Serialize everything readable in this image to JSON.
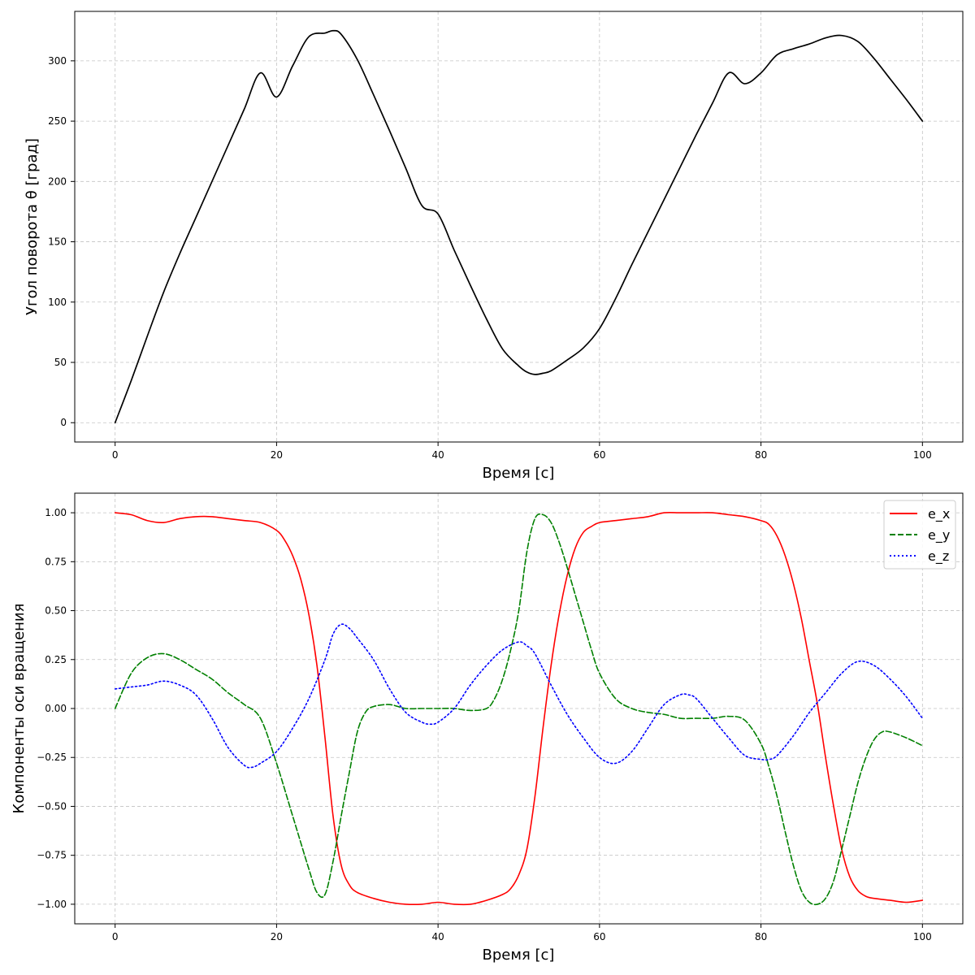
{
  "chart_data": [
    {
      "type": "line",
      "title": "",
      "xlabel": "Время [с]",
      "ylabel": "Угол поворота θ [град]",
      "xlim": [
        -5,
        105
      ],
      "ylim": [
        -16,
        341
      ],
      "xticks": [
        0,
        20,
        40,
        60,
        80,
        100
      ],
      "yticks": [
        0,
        50,
        100,
        150,
        200,
        250,
        300
      ],
      "xtick_labels": [
        "0",
        "20",
        "40",
        "60",
        "80",
        "100"
      ],
      "ytick_labels": [
        "0",
        "50",
        "100",
        "150",
        "200",
        "250",
        "300"
      ],
      "grid": true,
      "legend": null,
      "series": [
        {
          "color": "#000000",
          "dash": "solid",
          "x": [
            0,
            2,
            4,
            6,
            8,
            10,
            12,
            14,
            16,
            18,
            20,
            22,
            24,
            26,
            27,
            28,
            30,
            32,
            34,
            36,
            38,
            40,
            42,
            44,
            46,
            48,
            50,
            51,
            52,
            53,
            54,
            56,
            58,
            60,
            62,
            64,
            66,
            68,
            70,
            72,
            74,
            76,
            78,
            80,
            82,
            84,
            86,
            88,
            90,
            92,
            94,
            96,
            98,
            100
          ],
          "y": [
            0,
            35,
            72,
            108,
            140,
            170,
            200,
            230,
            260,
            290,
            270,
            296,
            320,
            323,
            325,
            322,
            301,
            272,
            242,
            211,
            180,
            173,
            143,
            114,
            86,
            61,
            47,
            42,
            40,
            41,
            43,
            52,
            62,
            78,
            103,
            131,
            158,
            185,
            212,
            239,
            265,
            290,
            281,
            290,
            305,
            310,
            314,
            319,
            321,
            316,
            302,
            285,
            268,
            250
          ]
        }
      ]
    },
    {
      "type": "line",
      "title": "",
      "xlabel": "Время [с]",
      "ylabel": "Компоненты оси вращения",
      "xlim": [
        -5,
        105
      ],
      "ylim": [
        -1.1,
        1.1
      ],
      "xticks": [
        0,
        20,
        40,
        60,
        80,
        100
      ],
      "yticks": [
        -1.0,
        -0.75,
        -0.5,
        -0.25,
        0.0,
        0.25,
        0.5,
        0.75,
        1.0
      ],
      "xtick_labels": [
        "0",
        "20",
        "40",
        "60",
        "80",
        "100"
      ],
      "ytick_labels": [
        "−1.00",
        "−0.75",
        "−0.50",
        "−0.25",
        "0.00",
        "0.25",
        "0.50",
        "0.75",
        "1.00"
      ],
      "grid": true,
      "legend": "top-right",
      "series": [
        {
          "name": "e_x",
          "color": "#ff0000",
          "dash": "solid",
          "x": [
            0,
            2,
            4,
            6,
            8,
            10,
            12,
            14,
            16,
            18,
            20,
            21,
            22,
            23,
            24,
            25,
            26,
            27,
            28,
            29,
            30,
            32,
            34,
            36,
            38,
            40,
            42,
            44,
            46,
            48,
            49,
            50,
            51,
            52,
            53,
            54,
            55,
            56,
            57,
            58,
            59,
            60,
            62,
            64,
            66,
            68,
            70,
            72,
            74,
            76,
            78,
            80,
            81,
            82,
            83,
            84,
            85,
            86,
            87,
            88,
            89,
            90,
            91,
            92,
            93,
            94,
            96,
            98,
            100
          ],
          "y": [
            1.0,
            0.99,
            0.96,
            0.95,
            0.97,
            0.98,
            0.98,
            0.97,
            0.96,
            0.95,
            0.91,
            0.86,
            0.78,
            0.66,
            0.48,
            0.22,
            -0.15,
            -0.55,
            -0.8,
            -0.9,
            -0.94,
            -0.97,
            -0.99,
            -1.0,
            -1.0,
            -0.99,
            -1.0,
            -1.0,
            -0.98,
            -0.95,
            -0.92,
            -0.85,
            -0.72,
            -0.45,
            -0.1,
            0.22,
            0.48,
            0.68,
            0.82,
            0.9,
            0.93,
            0.95,
            0.96,
            0.97,
            0.98,
            1.0,
            1.0,
            1.0,
            1.0,
            0.99,
            0.98,
            0.96,
            0.94,
            0.88,
            0.78,
            0.64,
            0.46,
            0.24,
            0.02,
            -0.25,
            -0.5,
            -0.72,
            -0.86,
            -0.93,
            -0.96,
            -0.97,
            -0.98,
            -0.99,
            -0.98
          ]
        },
        {
          "name": "e_y",
          "color": "#008000",
          "dash": "dashed",
          "x": [
            0,
            2,
            4,
            6,
            8,
            10,
            12,
            14,
            16,
            18,
            20,
            22,
            24,
            25,
            26,
            27,
            28,
            29,
            30,
            31,
            32,
            34,
            36,
            38,
            40,
            42,
            44,
            46,
            47,
            48,
            49,
            50,
            51,
            52,
            53,
            54,
            55,
            56,
            57,
            58,
            59,
            60,
            62,
            64,
            66,
            68,
            70,
            72,
            74,
            76,
            78,
            80,
            81,
            82,
            83,
            84,
            85,
            86,
            87,
            88,
            89,
            90,
            91,
            92,
            93,
            94,
            95,
            96,
            98,
            100
          ],
          "y": [
            0.0,
            0.18,
            0.26,
            0.28,
            0.25,
            0.2,
            0.15,
            0.08,
            0.02,
            -0.05,
            -0.28,
            -0.55,
            -0.82,
            -0.94,
            -0.95,
            -0.78,
            -0.55,
            -0.33,
            -0.12,
            -0.02,
            0.01,
            0.02,
            0.0,
            0.0,
            0.0,
            0.0,
            -0.01,
            0.0,
            0.05,
            0.15,
            0.3,
            0.5,
            0.8,
            0.97,
            0.99,
            0.95,
            0.85,
            0.72,
            0.58,
            0.44,
            0.3,
            0.18,
            0.05,
            0.0,
            -0.02,
            -0.03,
            -0.05,
            -0.05,
            -0.05,
            -0.04,
            -0.06,
            -0.18,
            -0.3,
            -0.45,
            -0.63,
            -0.8,
            -0.93,
            -0.99,
            -1.0,
            -0.97,
            -0.88,
            -0.72,
            -0.55,
            -0.38,
            -0.25,
            -0.16,
            -0.12,
            -0.12,
            -0.15,
            -0.19
          ]
        },
        {
          "name": "e_z",
          "color": "#0000ff",
          "dash": "dotted",
          "x": [
            0,
            2,
            4,
            6,
            8,
            10,
            12,
            14,
            16,
            17,
            18,
            20,
            22,
            24,
            26,
            27,
            28,
            29,
            30,
            32,
            34,
            36,
            38,
            39,
            40,
            42,
            44,
            46,
            48,
            50,
            51,
            52,
            54,
            56,
            58,
            60,
            62,
            64,
            66,
            68,
            70,
            71,
            72,
            74,
            76,
            78,
            80,
            81,
            82,
            84,
            86,
            88,
            90,
            92,
            94,
            96,
            98,
            100
          ],
          "y": [
            0.1,
            0.11,
            0.12,
            0.14,
            0.12,
            0.07,
            -0.05,
            -0.2,
            -0.29,
            -0.3,
            -0.28,
            -0.22,
            -0.1,
            0.05,
            0.25,
            0.38,
            0.43,
            0.41,
            0.36,
            0.25,
            0.1,
            -0.02,
            -0.07,
            -0.08,
            -0.07,
            0.0,
            0.12,
            0.22,
            0.3,
            0.34,
            0.32,
            0.28,
            0.12,
            -0.03,
            -0.15,
            -0.25,
            -0.28,
            -0.22,
            -0.1,
            0.02,
            0.07,
            0.07,
            0.05,
            -0.05,
            -0.15,
            -0.24,
            -0.26,
            -0.26,
            -0.24,
            -0.14,
            -0.02,
            0.08,
            0.18,
            0.24,
            0.22,
            0.15,
            0.06,
            -0.05
          ]
        }
      ]
    }
  ]
}
